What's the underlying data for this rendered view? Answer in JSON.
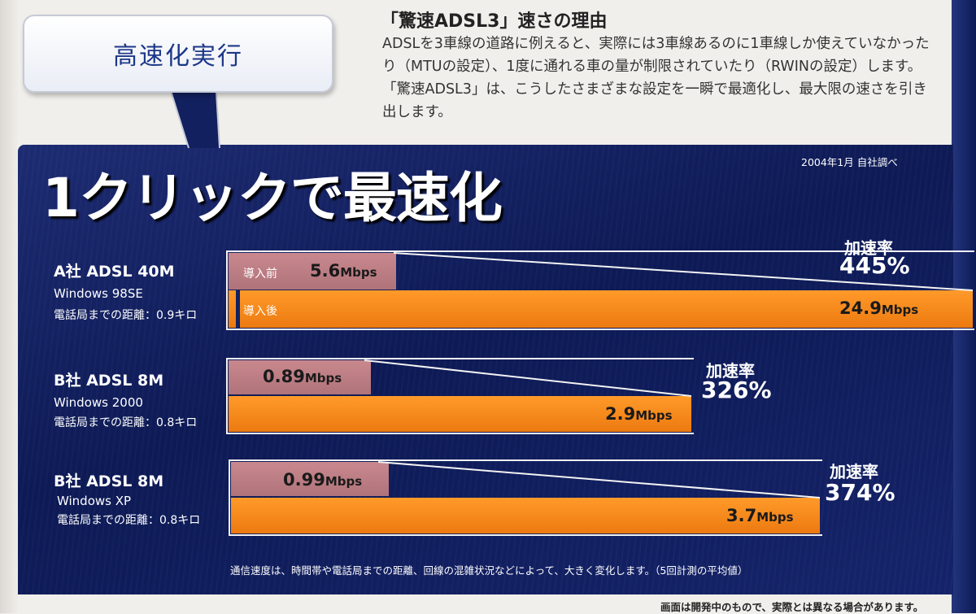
{
  "bubble": {
    "label": "高速化実行"
  },
  "explanation": {
    "title": "「驚速ADSL3」速さの理由",
    "body": "ADSLを3車線の道路に例えると、実際には3車線あるのに1車線しか使えていなかったり（MTUの設定）、1度に通れる車の量が制限されていたり（RWINの設定）します。「驚速ADSL3」は、こうしたさまざまな設定を一瞬で最適化し、最大限の速さを引き出します。"
  },
  "chart_data": {
    "type": "bar",
    "title": "1クリックで最速化",
    "source": "2004年1月 自社調べ",
    "tags": {
      "before": "導入前",
      "after": "導入後"
    },
    "rate_label": "加速率",
    "unit": "Mbps",
    "colors": {
      "before": "#b9787e",
      "after": "#f58a1c",
      "panel": "#13205f"
    },
    "groups": [
      {
        "name": "A社 ADSL 40M",
        "os": "Windows 98SE",
        "distance": "電話局までの距離：0.9キロ",
        "before_text": "5.6",
        "after_text": "24.9",
        "before": 5.6,
        "after": 24.9,
        "rate": "445%"
      },
      {
        "name": "B社 ADSL 8M",
        "os": "Windows 2000",
        "distance": "電話局までの距離：0.8キロ",
        "before_text": "0.89",
        "after_text": "2.9",
        "before": 0.89,
        "after": 2.9,
        "rate": "326%"
      },
      {
        "name": "B社 ADSL 8M",
        "os": "Windows XP",
        "distance": "電話局までの距離：0.8キロ",
        "before_text": "0.99",
        "after_text": "3.7",
        "before": 0.99,
        "after": 3.7,
        "rate": "374%"
      }
    ],
    "footnote": "通信速度は、時間帯や電話局までの距離、回線の混雑状況などによって、大きく変化します。（5回計測の平均値）"
  },
  "disclaimer": "画面は開発中のもので、実際とは異なる場合があります。"
}
